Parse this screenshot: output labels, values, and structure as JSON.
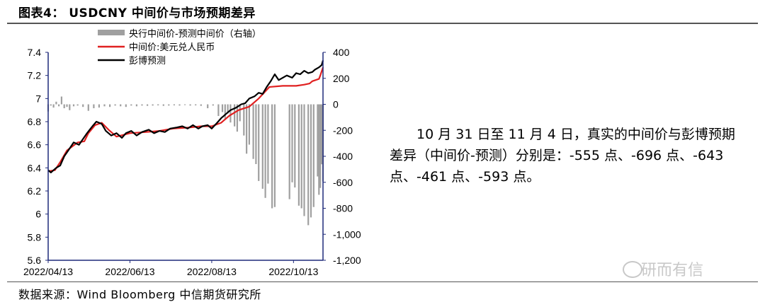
{
  "title": "图表4： USDCNY 中间价与市场预期差异",
  "note": "10 月 31 日至 11 月 4 日，真实的中间价与彭博预期差异（中间价-预测）分别是：-555 点、-696 点、-643 点、-461 点、-593 点。",
  "source": "数据来源：Wind  Bloomberg  中信期货研究所",
  "watermark": "研而有信",
  "colors": {
    "diff_bar": "#a0a0a0",
    "fixing": "#e02020",
    "bloomberg": "#000000",
    "axis": "#1f2a7a"
  },
  "chart_data": {
    "type": "line",
    "x_ticks": [
      "2022/04/13",
      "2022/06/13",
      "2022/08/13",
      "2022/10/13"
    ],
    "x_range": [
      "2022/04/13",
      "2022/11/04"
    ],
    "y_left": {
      "lim": [
        5.6,
        7.4
      ],
      "ticks": [
        "5.6",
        "5.8",
        "6",
        "6.2",
        "6.4",
        "6.6",
        "6.8",
        "7",
        "7.2",
        "7.4"
      ]
    },
    "y_right": {
      "lim": [
        -1200,
        400
      ],
      "ticks": [
        "-1,200",
        "-1,000",
        "-800",
        "-600",
        "-400",
        "-200",
        "0",
        "200",
        "400"
      ]
    },
    "legend": {
      "placement": "top-left",
      "entries": [
        "央行中间价-预测中间价（右轴）",
        "中间价:美元兑人民币",
        "彭博预测"
      ]
    },
    "series": [
      {
        "name": "中间价:美元兑人民币",
        "axis": "left",
        "type": "line",
        "color": "#e02020",
        "points": [
          [
            "2022/04/13",
            6.37
          ],
          [
            "2022/04/18",
            6.38
          ],
          [
            "2022/04/22",
            6.45
          ],
          [
            "2022/04/27",
            6.55
          ],
          [
            "2022/05/05",
            6.62
          ],
          [
            "2022/05/10",
            6.63
          ],
          [
            "2022/05/13",
            6.7
          ],
          [
            "2022/05/18",
            6.77
          ],
          [
            "2022/05/23",
            6.79
          ],
          [
            "2022/05/28",
            6.73
          ],
          [
            "2022/06/03",
            6.67
          ],
          [
            "2022/06/13",
            6.7
          ],
          [
            "2022/06/25",
            6.71
          ],
          [
            "2022/07/05",
            6.72
          ],
          [
            "2022/07/15",
            6.74
          ],
          [
            "2022/07/28",
            6.75
          ],
          [
            "2022/08/05",
            6.76
          ],
          [
            "2022/08/13",
            6.76
          ],
          [
            "2022/08/20",
            6.79
          ],
          [
            "2022/08/26",
            6.85
          ],
          [
            "2022/09/02",
            6.9
          ],
          [
            "2022/09/10",
            6.93
          ],
          [
            "2022/09/17",
            7.0
          ],
          [
            "2022/09/21",
            7.05
          ],
          [
            "2022/09/25",
            7.1
          ],
          [
            "2022/10/05",
            7.11
          ],
          [
            "2022/10/15",
            7.11
          ],
          [
            "2022/10/21",
            7.12
          ],
          [
            "2022/10/25",
            7.13
          ],
          [
            "2022/10/27",
            7.15
          ],
          [
            "2022/11/01",
            7.17
          ],
          [
            "2022/11/02",
            7.2
          ],
          [
            "2022/11/04",
            7.27
          ]
        ]
      },
      {
        "name": "彭博预测",
        "axis": "left",
        "type": "line",
        "color": "#000000",
        "points": [
          [
            "2022/04/13",
            6.38
          ],
          [
            "2022/04/15",
            6.36
          ],
          [
            "2022/04/19",
            6.4
          ],
          [
            "2022/04/22",
            6.42
          ],
          [
            "2022/04/25",
            6.5
          ],
          [
            "2022/04/28",
            6.55
          ],
          [
            "2022/05/02",
            6.62
          ],
          [
            "2022/05/06",
            6.6
          ],
          [
            "2022/05/09",
            6.65
          ],
          [
            "2022/05/12",
            6.7
          ],
          [
            "2022/05/16",
            6.76
          ],
          [
            "2022/05/19",
            6.8
          ],
          [
            "2022/05/23",
            6.78
          ],
          [
            "2022/05/26",
            6.72
          ],
          [
            "2022/05/30",
            6.68
          ],
          [
            "2022/06/03",
            6.7
          ],
          [
            "2022/06/07",
            6.66
          ],
          [
            "2022/06/10",
            6.7
          ],
          [
            "2022/06/14",
            6.72
          ],
          [
            "2022/06/18",
            6.68
          ],
          [
            "2022/06/22",
            6.71
          ],
          [
            "2022/06/27",
            6.73
          ],
          [
            "2022/07/01",
            6.7
          ],
          [
            "2022/07/05",
            6.72
          ],
          [
            "2022/07/09",
            6.71
          ],
          [
            "2022/07/13",
            6.74
          ],
          [
            "2022/07/18",
            6.75
          ],
          [
            "2022/07/22",
            6.76
          ],
          [
            "2022/07/26",
            6.74
          ],
          [
            "2022/07/30",
            6.77
          ],
          [
            "2022/08/03",
            6.74
          ],
          [
            "2022/08/06",
            6.76
          ],
          [
            "2022/08/10",
            6.77
          ],
          [
            "2022/08/13",
            6.74
          ],
          [
            "2022/08/17",
            6.79
          ],
          [
            "2022/08/20",
            6.83
          ],
          [
            "2022/08/24",
            6.87
          ],
          [
            "2022/08/27",
            6.9
          ],
          [
            "2022/08/31",
            6.92
          ],
          [
            "2022/09/04",
            6.95
          ],
          [
            "2022/09/07",
            6.96
          ],
          [
            "2022/09/10",
            7.0
          ],
          [
            "2022/09/14",
            7.02
          ],
          [
            "2022/09/17",
            7.05
          ],
          [
            "2022/09/20",
            7.04
          ],
          [
            "2022/09/23",
            7.1
          ],
          [
            "2022/09/26",
            7.15
          ],
          [
            "2022/09/29",
            7.21
          ],
          [
            "2022/10/02",
            7.16
          ],
          [
            "2022/10/05",
            7.18
          ],
          [
            "2022/10/08",
            7.2
          ],
          [
            "2022/10/12",
            7.18
          ],
          [
            "2022/10/15",
            7.22
          ],
          [
            "2022/10/18",
            7.21
          ],
          [
            "2022/10/21",
            7.24
          ],
          [
            "2022/10/24",
            7.22
          ],
          [
            "2022/10/27",
            7.23
          ],
          [
            "2022/10/29",
            7.25
          ],
          [
            "2022/11/01",
            7.27
          ],
          [
            "2022/11/03",
            7.29
          ],
          [
            "2022/11/04",
            7.33
          ]
        ]
      },
      {
        "name": "央行中间价-预测中间价（右轴）",
        "axis": "right",
        "type": "bar",
        "color": "#a0a0a0",
        "points": [
          [
            "2022/04/13",
            -55
          ],
          [
            "2022/04/15",
            -10
          ],
          [
            "2022/04/17",
            -25
          ],
          [
            "2022/04/19",
            20
          ],
          [
            "2022/04/21",
            -15
          ],
          [
            "2022/04/23",
            60
          ],
          [
            "2022/04/25",
            -30
          ],
          [
            "2022/04/27",
            -20
          ],
          [
            "2022/04/29",
            -45
          ],
          [
            "2022/05/02",
            -15
          ],
          [
            "2022/05/05",
            -10
          ],
          [
            "2022/05/09",
            -20
          ],
          [
            "2022/05/13",
            -50
          ],
          [
            "2022/05/17",
            -30
          ],
          [
            "2022/05/21",
            -25
          ],
          [
            "2022/05/25",
            -15
          ],
          [
            "2022/05/29",
            -20
          ],
          [
            "2022/06/02",
            -10
          ],
          [
            "2022/06/06",
            -15
          ],
          [
            "2022/06/10",
            -20
          ],
          [
            "2022/06/14",
            -10
          ],
          [
            "2022/06/18",
            -15
          ],
          [
            "2022/06/22",
            -10
          ],
          [
            "2022/06/26",
            -12
          ],
          [
            "2022/06/30",
            -10
          ],
          [
            "2022/07/04",
            -8
          ],
          [
            "2022/07/08",
            -12
          ],
          [
            "2022/07/12",
            -10
          ],
          [
            "2022/07/16",
            -8
          ],
          [
            "2022/07/20",
            -10
          ],
          [
            "2022/07/24",
            -6
          ],
          [
            "2022/07/28",
            -10
          ],
          [
            "2022/08/01",
            -8
          ],
          [
            "2022/08/05",
            -12
          ],
          [
            "2022/08/10",
            -30
          ],
          [
            "2022/08/14",
            -10
          ],
          [
            "2022/08/18",
            -90
          ],
          [
            "2022/08/21",
            -60
          ],
          [
            "2022/08/23",
            -110
          ],
          [
            "2022/08/25",
            -70
          ],
          [
            "2022/08/27",
            -140
          ],
          [
            "2022/08/30",
            -170
          ],
          [
            "2022/09/01",
            -210
          ],
          [
            "2022/09/03",
            -130
          ],
          [
            "2022/09/06",
            -240
          ],
          [
            "2022/09/08",
            -380
          ],
          [
            "2022/09/10",
            -310
          ],
          [
            "2022/09/13",
            -420
          ],
          [
            "2022/09/15",
            -460
          ],
          [
            "2022/09/17",
            -590
          ],
          [
            "2022/09/20",
            -650
          ],
          [
            "2022/09/22",
            -720
          ],
          [
            "2022/09/24",
            -610
          ],
          [
            "2022/09/27",
            -800
          ],
          [
            "2022/09/29",
            -790
          ],
          [
            "2022/10/10",
            -730
          ],
          [
            "2022/10/12",
            -600
          ],
          [
            "2022/10/14",
            -640
          ],
          [
            "2022/10/17",
            -780
          ],
          [
            "2022/10/19",
            -800
          ],
          [
            "2022/10/21",
            -860
          ],
          [
            "2022/10/24",
            -930
          ],
          [
            "2022/10/26",
            -870
          ],
          [
            "2022/10/28",
            -790
          ],
          [
            "2022/10/31",
            -555
          ],
          [
            "2022/11/01",
            -696
          ],
          [
            "2022/11/02",
            -643
          ],
          [
            "2022/11/03",
            -461
          ],
          [
            "2022/11/04",
            -593
          ]
        ]
      }
    ]
  }
}
